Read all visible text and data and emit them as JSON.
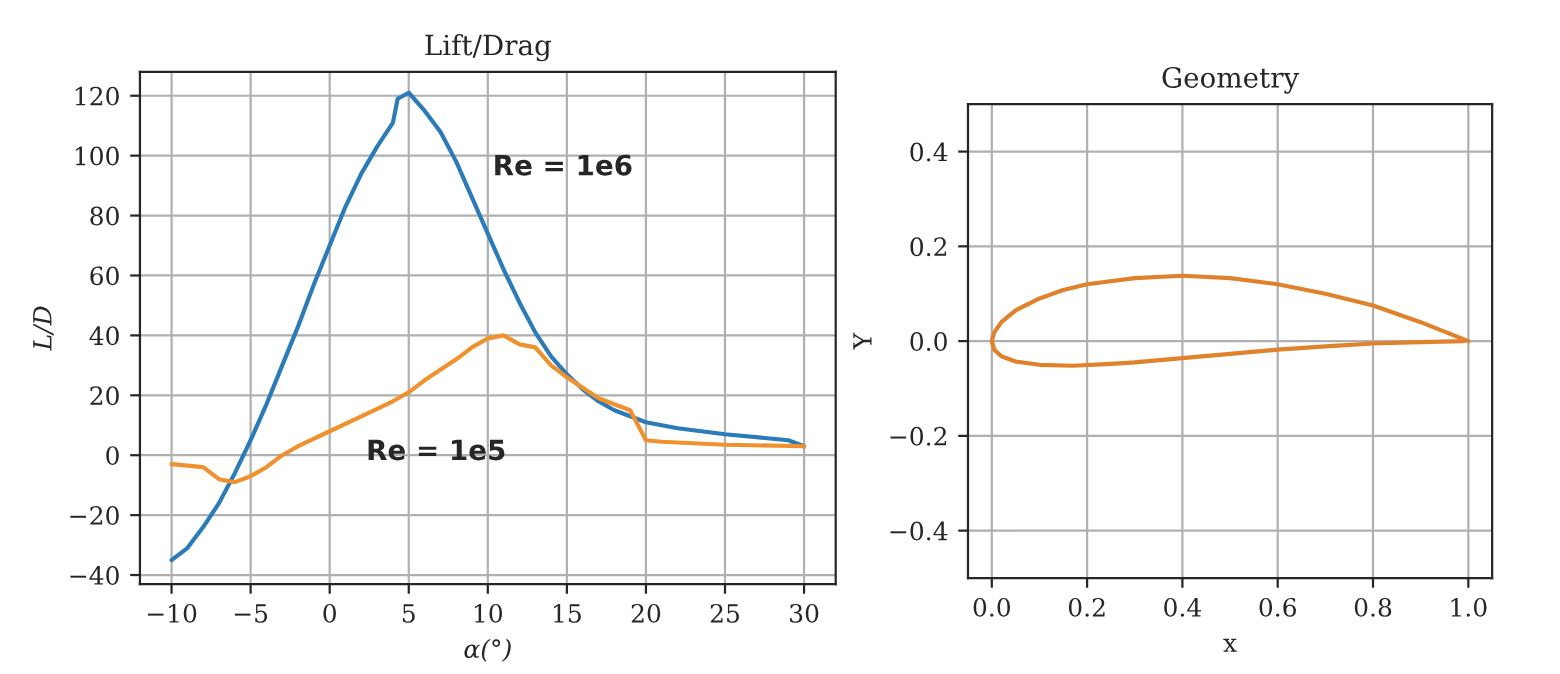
{
  "chart_data": [
    {
      "type": "line",
      "title": "Lift/Drag",
      "xlabel": "α(°)",
      "ylabel": "L/D",
      "xlim": [
        -12,
        32
      ],
      "ylim": [
        -43,
        128
      ],
      "xticks": [
        {
          "value": -10,
          "label": "−10"
        },
        {
          "value": -5,
          "label": "−5"
        },
        0,
        5,
        10,
        15,
        20,
        25,
        30
      ],
      "yticks": [
        {
          "value": -40,
          "label": "−40"
        },
        {
          "value": -20,
          "label": "−20"
        },
        0,
        20,
        40,
        60,
        80,
        100,
        120
      ],
      "grid": true,
      "series": [
        {
          "color": "#2b7bb9",
          "x": [
            -10,
            -9,
            -8,
            -7,
            -6,
            -5,
            -4,
            -3,
            -2,
            -1,
            0,
            1,
            2,
            3,
            4,
            4.3,
            5,
            6,
            7,
            8,
            9,
            10,
            11,
            12,
            13,
            14,
            15,
            16,
            17,
            18,
            19,
            20,
            22,
            25,
            28,
            29,
            30
          ],
          "values": [
            -35,
            -31,
            -24,
            -16,
            -6,
            5,
            17,
            30,
            43,
            57,
            70,
            83,
            94,
            103,
            111,
            119,
            121,
            115,
            108,
            98,
            86,
            74,
            62,
            51,
            41,
            33,
            27,
            22,
            18,
            15,
            13,
            11,
            9,
            7,
            5.5,
            5,
            3
          ]
        },
        {
          "color": "#f0912e",
          "x": [
            -10,
            -8,
            -7,
            -6,
            -5,
            -4,
            -3,
            -2,
            0,
            2,
            4,
            5,
            6,
            8,
            9,
            10,
            11,
            12,
            13,
            14,
            15,
            17,
            19,
            20,
            21,
            25,
            30
          ],
          "values": [
            -3,
            -4,
            -8,
            -9,
            -7,
            -4,
            0,
            3,
            8,
            13,
            18,
            21,
            25,
            32,
            36,
            39,
            40,
            37,
            36,
            30,
            26,
            19,
            15,
            5,
            4.5,
            3.5,
            3
          ]
        }
      ],
      "annotations": [
        "Re = 1e6",
        "Re = 1e5"
      ]
    },
    {
      "type": "line",
      "title": "Geometry",
      "xlabel": "x",
      "ylabel": "Y",
      "xlim": [
        -0.05,
        1.05
      ],
      "ylim": [
        -0.5,
        0.5
      ],
      "xticks": [
        {
          "value": 0,
          "label": "0.0"
        },
        0.2,
        0.4,
        0.6,
        0.8,
        {
          "value": 1,
          "label": "1.0"
        }
      ],
      "yticks": [
        {
          "value": -0.4,
          "label": "−0.4"
        },
        {
          "value": -0.2,
          "label": "−0.2"
        },
        {
          "value": 0,
          "label": "0.0"
        },
        0.2,
        0.4
      ],
      "grid": true,
      "series": [
        {
          "color": "#e0822c",
          "x": [
            1.0,
            0.9,
            0.8,
            0.7,
            0.6,
            0.5,
            0.4,
            0.3,
            0.2,
            0.15,
            0.1,
            0.05,
            0.02,
            0.005,
            0,
            0.005,
            0.02,
            0.05,
            0.1,
            0.17,
            0.25,
            0.3,
            0.4,
            0.5,
            0.6,
            0.7,
            0.8,
            0.9,
            0.99
          ],
          "values": [
            0.0,
            0.04,
            0.075,
            0.1,
            0.12,
            0.133,
            0.138,
            0.133,
            0.12,
            0.108,
            0.09,
            0.065,
            0.04,
            0.018,
            0,
            -0.018,
            -0.032,
            -0.043,
            -0.05,
            -0.052,
            -0.048,
            -0.045,
            -0.036,
            -0.027,
            -0.018,
            -0.011,
            -0.005,
            -0.002,
            0.0
          ]
        }
      ]
    }
  ]
}
